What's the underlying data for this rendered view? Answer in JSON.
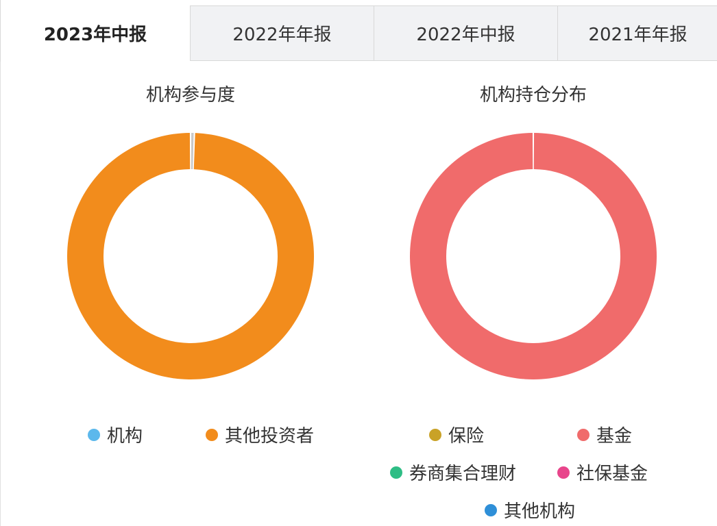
{
  "tabs": [
    {
      "label": "2023年中报",
      "active": true
    },
    {
      "label": "2022年年报",
      "active": false
    },
    {
      "label": "2022年中报",
      "active": false
    },
    {
      "label": "2021年年报",
      "active": false
    }
  ],
  "chart_data": [
    {
      "type": "pie",
      "title": "机构参与度",
      "series": [
        {
          "name": "机构",
          "value": 0.5,
          "color": "#c9c9c9",
          "legend_color": "#5cb8ec"
        },
        {
          "name": "其他投资者",
          "value": 99.5,
          "color": "#f28c1c",
          "legend_color": "#f28c1c"
        }
      ]
    },
    {
      "type": "pie",
      "title": "机构持仓分布",
      "series": [
        {
          "name": "保险",
          "value": 0,
          "color": "#c9a227",
          "legend_color": "#c9a227"
        },
        {
          "name": "基金",
          "value": 100,
          "color": "#f06b6b",
          "legend_color": "#f06b6b"
        },
        {
          "name": "券商集合理财",
          "value": 0,
          "color": "#2ebd85",
          "legend_color": "#2ebd85"
        },
        {
          "name": "社保基金",
          "value": 0,
          "color": "#e8458b",
          "legend_color": "#e8458b"
        },
        {
          "name": "其他机构",
          "value": 0,
          "color": "#2e8fd8",
          "legend_color": "#2e8fd8"
        }
      ]
    }
  ]
}
